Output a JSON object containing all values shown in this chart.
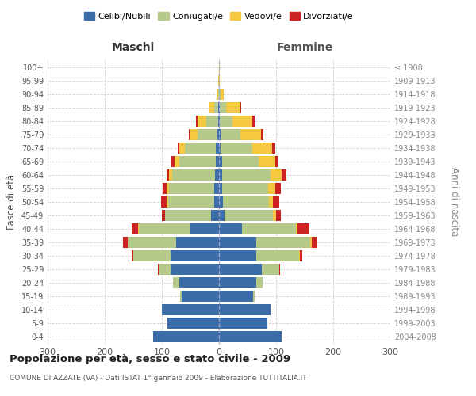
{
  "age_groups": [
    "0-4",
    "5-9",
    "10-14",
    "15-19",
    "20-24",
    "25-29",
    "30-34",
    "35-39",
    "40-44",
    "45-49",
    "50-54",
    "55-59",
    "60-64",
    "65-69",
    "70-74",
    "75-79",
    "80-84",
    "85-89",
    "90-94",
    "95-99",
    "100+"
  ],
  "birth_years": [
    "2004-2008",
    "1999-2003",
    "1994-1998",
    "1989-1993",
    "1984-1988",
    "1979-1983",
    "1974-1978",
    "1969-1973",
    "1964-1968",
    "1959-1963",
    "1954-1958",
    "1949-1953",
    "1944-1948",
    "1939-1943",
    "1934-1938",
    "1929-1933",
    "1924-1928",
    "1919-1923",
    "1914-1918",
    "1909-1913",
    "≤ 1908"
  ],
  "males": {
    "celibi": [
      115,
      90,
      100,
      65,
      70,
      85,
      85,
      75,
      50,
      14,
      9,
      8,
      7,
      5,
      5,
      3,
      2,
      1,
      0,
      0,
      0
    ],
    "coniugati": [
      0,
      0,
      0,
      3,
      10,
      20,
      65,
      85,
      90,
      80,
      80,
      80,
      75,
      65,
      55,
      35,
      20,
      8,
      2,
      0,
      0
    ],
    "vedovi": [
      0,
      0,
      0,
      0,
      0,
      0,
      0,
      0,
      1,
      1,
      2,
      3,
      5,
      8,
      10,
      12,
      15,
      8,
      2,
      1,
      0
    ],
    "divorziati": [
      0,
      0,
      0,
      0,
      0,
      2,
      3,
      8,
      12,
      5,
      10,
      8,
      5,
      5,
      2,
      3,
      3,
      0,
      0,
      0,
      0
    ]
  },
  "females": {
    "nubili": [
      110,
      85,
      90,
      60,
      65,
      75,
      65,
      65,
      40,
      10,
      7,
      6,
      5,
      5,
      3,
      3,
      2,
      2,
      0,
      0,
      0
    ],
    "coniugate": [
      0,
      0,
      0,
      3,
      12,
      30,
      75,
      95,
      95,
      85,
      80,
      80,
      85,
      65,
      55,
      35,
      22,
      10,
      3,
      0,
      0
    ],
    "vedove": [
      0,
      0,
      0,
      0,
      0,
      0,
      1,
      2,
      3,
      5,
      8,
      12,
      20,
      28,
      35,
      35,
      35,
      25,
      5,
      2,
      1
    ],
    "divorziate": [
      0,
      0,
      0,
      0,
      0,
      2,
      5,
      10,
      20,
      8,
      10,
      10,
      8,
      5,
      5,
      5,
      3,
      2,
      0,
      0,
      0
    ]
  },
  "colors": {
    "celibi": "#3a6da8",
    "coniugati": "#b5c98a",
    "vedovi": "#f5c842",
    "divorziati": "#cc2222"
  },
  "title": "Popolazione per età, sesso e stato civile - 2009",
  "subtitle": "COMUNE DI AZZATE (VA) - Dati ISTAT 1° gennaio 2009 - Elaborazione TUTTITALIA.IT",
  "xlabel_left": "Maschi",
  "xlabel_right": "Femmine",
  "ylabel_left": "Fasce di età",
  "ylabel_right": "Anni di nascita",
  "xlim": 300,
  "xticks": [
    -300,
    -200,
    -100,
    0,
    100,
    200,
    300
  ],
  "xticklabels": [
    "300",
    "200",
    "100",
    "0",
    "100",
    "200",
    "300"
  ],
  "legend_labels": [
    "Celibi/Nubili",
    "Coniugati/e",
    "Vedovi/e",
    "Divorziati/e"
  ],
  "background_color": "#ffffff",
  "grid_color": "#cccccc"
}
